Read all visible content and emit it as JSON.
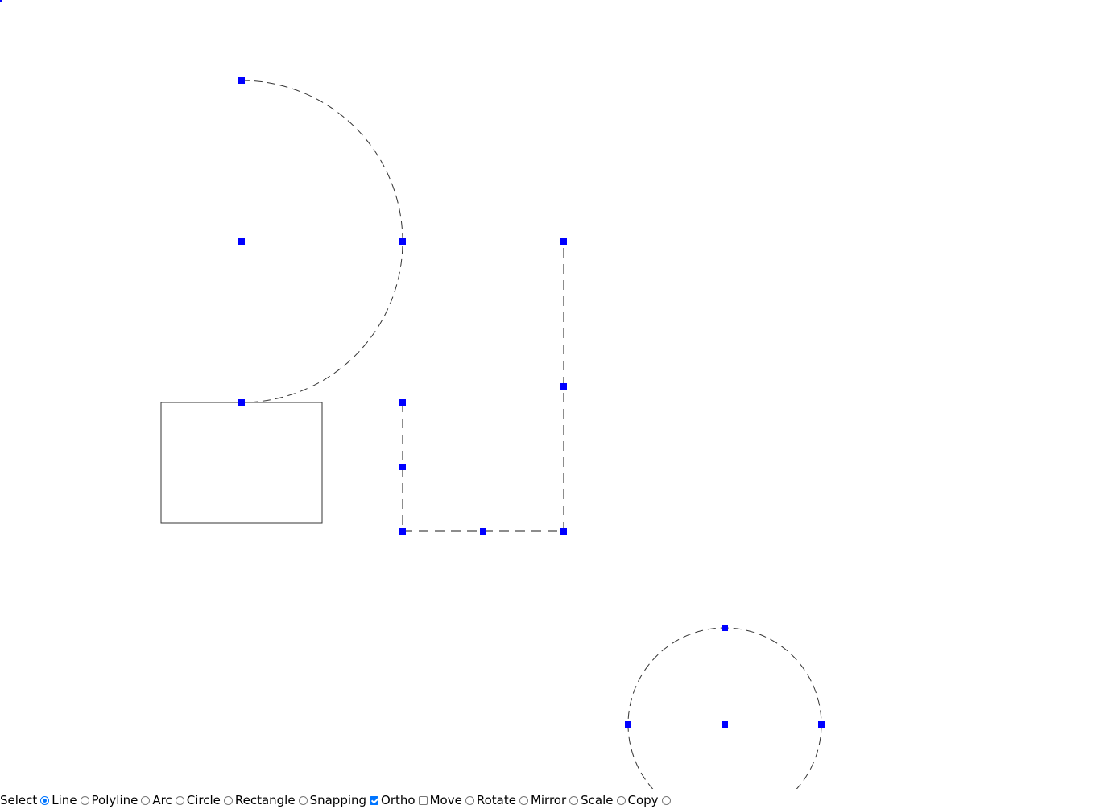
{
  "toolbar": {
    "items": [
      {
        "label": "Select",
        "control": "text",
        "checked": false
      },
      {
        "label": "Line",
        "control": "radio",
        "checked": true
      },
      {
        "label": "Polyline",
        "control": "radio",
        "checked": false
      },
      {
        "label": "Arc",
        "control": "radio",
        "checked": false
      },
      {
        "label": "Circle",
        "control": "radio",
        "checked": false
      },
      {
        "label": "Rectangle",
        "control": "radio",
        "checked": false
      },
      {
        "label": "Snapping",
        "control": "radio",
        "checked": false
      },
      {
        "label": "Ortho",
        "control": "checkbox",
        "checked": true
      },
      {
        "label": "Move",
        "control": "checkbox",
        "checked": false
      },
      {
        "label": "Rotate",
        "control": "radio",
        "checked": false
      },
      {
        "label": "Mirror",
        "control": "radio",
        "checked": false
      },
      {
        "label": "Scale",
        "control": "radio",
        "checked": false
      },
      {
        "label": "Copy",
        "control": "radio",
        "checked": false
      },
      {
        "label": "",
        "control": "radio",
        "checked": false
      }
    ]
  },
  "colors": {
    "grip": "#0000ff",
    "shape": "#333333",
    "selected_line": "#555555"
  }
}
